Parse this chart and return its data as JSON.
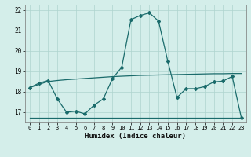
{
  "xlabel": "Humidex (Indice chaleur)",
  "background_color": "#d4eeea",
  "grid_color": "#aed4ce",
  "line_color": "#1a6b6b",
  "xlim": [
    -0.5,
    23.5
  ],
  "ylim": [
    16.5,
    22.25
  ],
  "xticks": [
    0,
    1,
    2,
    3,
    4,
    5,
    6,
    7,
    8,
    9,
    10,
    11,
    12,
    13,
    14,
    15,
    16,
    17,
    18,
    19,
    20,
    21,
    22,
    23
  ],
  "yticks": [
    17,
    18,
    19,
    20,
    21,
    22
  ],
  "curve_flat_x": [
    0,
    1,
    2,
    3,
    4,
    5,
    6,
    7,
    8,
    9,
    10,
    11,
    12,
    13,
    14,
    15,
    16,
    17,
    18,
    19,
    20,
    21,
    22,
    23
  ],
  "curve_flat_y": [
    16.72,
    16.72,
    16.72,
    16.72,
    16.72,
    16.72,
    16.72,
    16.72,
    16.72,
    16.72,
    16.72,
    16.72,
    16.72,
    16.72,
    16.72,
    16.72,
    16.72,
    16.72,
    16.72,
    16.72,
    16.72,
    16.72,
    16.72,
    16.72
  ],
  "curve_smooth_x": [
    0,
    1,
    2,
    3,
    4,
    5,
    6,
    7,
    8,
    9,
    10,
    11,
    12,
    13,
    14,
    15,
    16,
    17,
    18,
    19,
    20,
    21,
    22,
    23
  ],
  "curve_smooth_y": [
    18.2,
    18.36,
    18.5,
    18.55,
    18.59,
    18.62,
    18.65,
    18.68,
    18.71,
    18.74,
    18.76,
    18.78,
    18.8,
    18.81,
    18.82,
    18.83,
    18.84,
    18.85,
    18.86,
    18.87,
    18.88,
    18.88,
    18.89,
    18.89
  ],
  "curve_main_x": [
    0,
    1,
    2,
    3,
    4,
    5,
    6,
    7,
    8,
    9,
    10,
    11,
    12,
    13,
    14,
    15,
    16,
    17,
    18,
    19,
    20,
    21,
    22,
    23
  ],
  "curve_main_y": [
    18.2,
    18.42,
    18.55,
    17.65,
    17.0,
    17.05,
    16.92,
    17.35,
    17.65,
    18.65,
    19.2,
    21.52,
    21.72,
    21.85,
    21.45,
    19.5,
    17.72,
    18.15,
    18.15,
    18.25,
    18.48,
    18.52,
    18.75,
    16.72
  ]
}
